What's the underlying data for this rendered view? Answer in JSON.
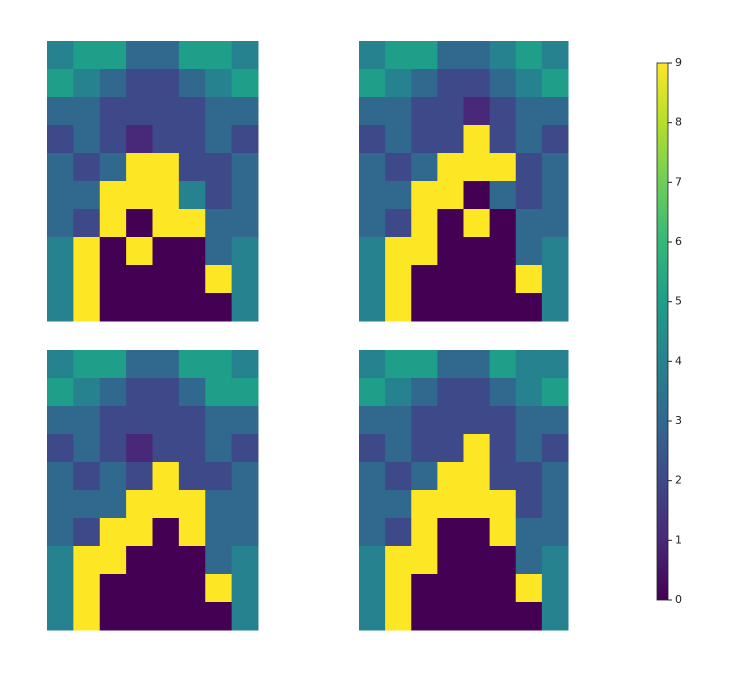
{
  "chart_data": {
    "type": "heatmap",
    "colormap": "viridis",
    "clim": [
      0,
      9
    ],
    "cticks": [
      0,
      1,
      2,
      3,
      4,
      5,
      6,
      7,
      8,
      9
    ],
    "panels": [
      {
        "values": [
          [
            4,
            5,
            5,
            3,
            3,
            5,
            5,
            4
          ],
          [
            5,
            4,
            3,
            2,
            2,
            3,
            4,
            5
          ],
          [
            3,
            3,
            2,
            2,
            2,
            2,
            3,
            3
          ],
          [
            2,
            3,
            2,
            1,
            2,
            2,
            3,
            2
          ],
          [
            3,
            2,
            3,
            9,
            9,
            2,
            2,
            3
          ],
          [
            3,
            3,
            9,
            9,
            9,
            4,
            2,
            3
          ],
          [
            3,
            2,
            9,
            0,
            9,
            9,
            3,
            3
          ],
          [
            4,
            9,
            0,
            9,
            0,
            0,
            3,
            4
          ],
          [
            4,
            9,
            0,
            0,
            0,
            0,
            9,
            4
          ],
          [
            4,
            9,
            0,
            0,
            0,
            0,
            0,
            4
          ]
        ]
      },
      {
        "values": [
          [
            4,
            5,
            5,
            3,
            3,
            4,
            5,
            4
          ],
          [
            5,
            4,
            3,
            2,
            2,
            3,
            4,
            5
          ],
          [
            3,
            3,
            2,
            2,
            1,
            2,
            3,
            3
          ],
          [
            2,
            3,
            2,
            2,
            9,
            2,
            3,
            2
          ],
          [
            3,
            2,
            3,
            9,
            9,
            9,
            2,
            3
          ],
          [
            3,
            3,
            9,
            9,
            0,
            3,
            2,
            3
          ],
          [
            3,
            2,
            9,
            0,
            9,
            0,
            3,
            3
          ],
          [
            4,
            9,
            9,
            0,
            0,
            0,
            3,
            4
          ],
          [
            4,
            9,
            0,
            0,
            0,
            0,
            9,
            4
          ],
          [
            4,
            9,
            0,
            0,
            0,
            0,
            0,
            4
          ]
        ]
      },
      {
        "values": [
          [
            4,
            5,
            5,
            3,
            3,
            5,
            5,
            4
          ],
          [
            5,
            4,
            3,
            2,
            2,
            3,
            5,
            5
          ],
          [
            3,
            3,
            2,
            2,
            2,
            2,
            3,
            3
          ],
          [
            2,
            3,
            2,
            1,
            2,
            2,
            3,
            2
          ],
          [
            3,
            2,
            3,
            2,
            9,
            2,
            2,
            3
          ],
          [
            3,
            3,
            3,
            9,
            9,
            9,
            3,
            3
          ],
          [
            3,
            2,
            9,
            9,
            0,
            9,
            3,
            3
          ],
          [
            4,
            9,
            9,
            0,
            0,
            0,
            3,
            4
          ],
          [
            4,
            9,
            0,
            0,
            0,
            0,
            9,
            4
          ],
          [
            4,
            9,
            0,
            0,
            0,
            0,
            0,
            4
          ]
        ]
      },
      {
        "values": [
          [
            4,
            5,
            5,
            3,
            3,
            5,
            4,
            4
          ],
          [
            5,
            4,
            3,
            2,
            2,
            3,
            4,
            5
          ],
          [
            3,
            3,
            2,
            2,
            2,
            2,
            3,
            3
          ],
          [
            2,
            3,
            2,
            2,
            9,
            2,
            3,
            2
          ],
          [
            3,
            2,
            3,
            9,
            9,
            2,
            2,
            3
          ],
          [
            3,
            3,
            9,
            9,
            9,
            9,
            2,
            3
          ],
          [
            3,
            2,
            9,
            0,
            0,
            9,
            3,
            3
          ],
          [
            4,
            9,
            9,
            0,
            0,
            0,
            3,
            4
          ],
          [
            4,
            9,
            0,
            0,
            0,
            0,
            9,
            4
          ],
          [
            4,
            9,
            0,
            0,
            0,
            0,
            0,
            4
          ]
        ]
      }
    ]
  }
}
